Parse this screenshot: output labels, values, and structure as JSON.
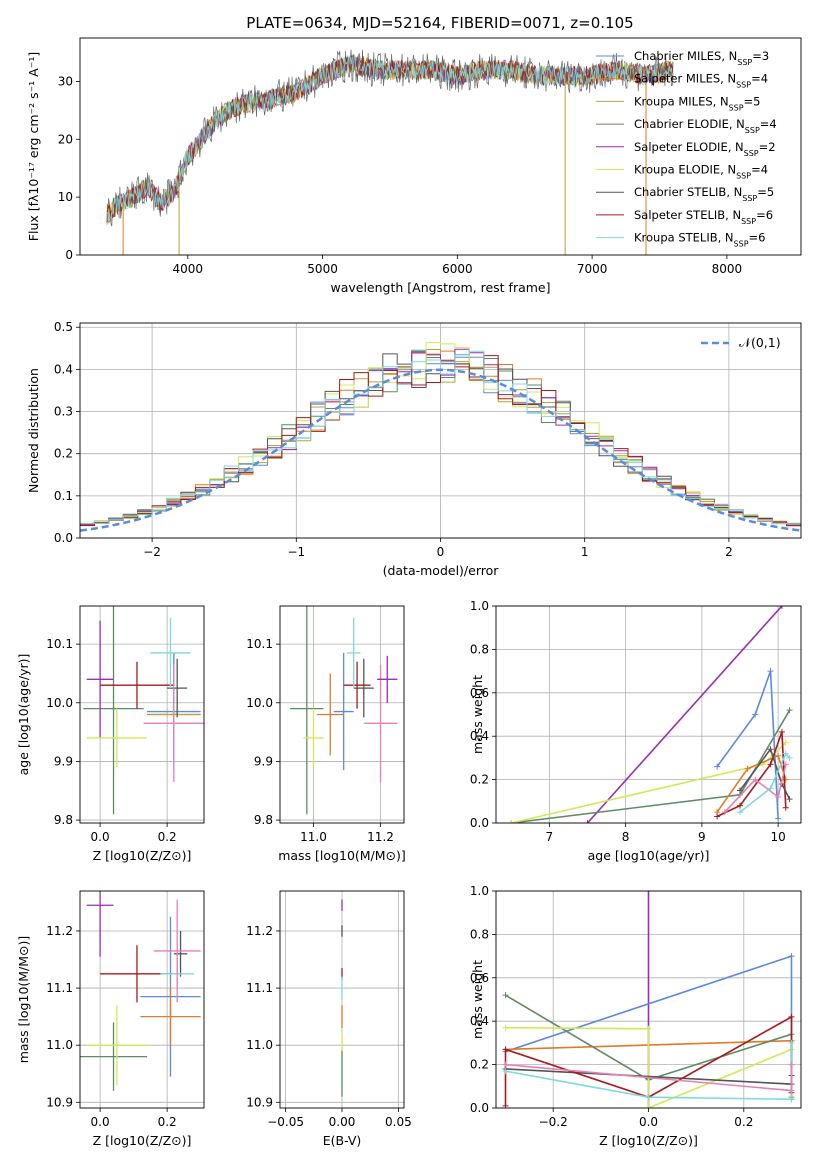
{
  "figure": {
    "title": "PLATE=0634, MJD=52164, FIBERID=0071, z=0.105"
  },
  "series_colors": [
    "#5b8bdc",
    "#e07b27",
    "#b5a43c",
    "#5e8b63",
    "#9a2cb5",
    "#d3e855",
    "#555555",
    "#a81b1b",
    "#7fd8df",
    "#e87fb5",
    "#6e6e6e"
  ],
  "legend": [
    {
      "label": "Chabrier MILES, N",
      "sub": "SSP",
      "eq": "=3",
      "color": "#5b8bdc"
    },
    {
      "label": "Salpeter MILES, N",
      "sub": "SSP",
      "eq": "=4",
      "color": "#e07b27"
    },
    {
      "label": "Kroupa MILES, N",
      "sub": "SSP",
      "eq": "=5",
      "color": "#b5a43c"
    },
    {
      "label": "Chabrier ELODIE, N",
      "sub": "SSP",
      "eq": "=4",
      "color": "#5e8b63"
    },
    {
      "label": "Salpeter ELODIE, N",
      "sub": "SSP",
      "eq": "=2",
      "color": "#9a2cb5"
    },
    {
      "label": "Kroupa ELODIE, N",
      "sub": "SSP",
      "eq": "=4",
      "color": "#d3e855"
    },
    {
      "label": "Chabrier STELIB, N",
      "sub": "SSP",
      "eq": "=5",
      "color": "#555555"
    },
    {
      "label": "Salpeter STELIB, N",
      "sub": "SSP",
      "eq": "=6",
      "color": "#a81b1b"
    },
    {
      "label": "Kroupa STELIB, N",
      "sub": "SSP",
      "eq": "=6",
      "color": "#7fd8df"
    }
  ],
  "chart_data": [
    {
      "id": "spectrum",
      "type": "line",
      "xlabel": "wavelength [Angstrom, rest frame]",
      "ylabel": "Flux [fλ10⁻¹⁷ erg cm⁻² s⁻¹ A⁻¹]",
      "xlim": [
        3200,
        8550
      ],
      "ylim": [
        0,
        37.5
      ],
      "xticks": [
        4000,
        5000,
        6000,
        7000,
        8000
      ],
      "yticks": [
        0,
        10,
        20,
        30
      ],
      "grid": false,
      "legend_position": "right",
      "x": [
        3400,
        3500,
        3600,
        3700,
        3800,
        3900,
        4000,
        4100,
        4200,
        4300,
        4400,
        4600,
        4800,
        5000,
        5200,
        5400,
        5600,
        5800,
        6000,
        6200,
        6400,
        6600,
        6800,
        7000,
        7200,
        7400,
        7600
      ],
      "y": [
        7,
        9,
        10,
        12,
        9,
        11,
        17,
        20,
        23,
        25,
        26,
        27,
        28,
        31,
        33,
        32,
        32,
        32,
        31,
        32,
        32,
        31,
        31,
        31,
        32,
        31,
        32
      ]
    },
    {
      "id": "residuals",
      "type": "step",
      "xlabel": "(data-model)/error",
      "ylabel": "Normed distribution",
      "xlim": [
        -2.5,
        2.5
      ],
      "ylim": [
        0,
        0.51
      ],
      "xticks": [
        -2,
        -1,
        0,
        1,
        2
      ],
      "yticks": [
        0.0,
        0.1,
        0.2,
        0.3,
        0.4,
        0.5
      ],
      "grid": true,
      "legend_position": "top-right",
      "reference_curve": "𝒩(0,1)",
      "bin_width": 0.1
    },
    {
      "id": "age_vs_Z",
      "type": "errorbar",
      "xlabel": "Z [log10(Z/Z⊙)]",
      "ylabel": "age  [log10(age/yr)]",
      "xlim": [
        -0.06,
        0.31
      ],
      "ylim": [
        9.795,
        10.165
      ],
      "xticks": [
        0.0,
        0.2
      ],
      "yticks": [
        9.8,
        9.9,
        10.0,
        10.1
      ],
      "grid": true,
      "points": [
        {
          "x": 0.22,
          "y": 9.985,
          "xerr": 0.08,
          "yerr": 0.1,
          "color": "#5b8bdc"
        },
        {
          "x": 0.22,
          "y": 9.98,
          "xerr": 0.08,
          "yerr": 0.03,
          "color": "#e07b27"
        },
        {
          "x": 0.22,
          "y": 9.98,
          "xerr": 0.07,
          "yerr": 0.02,
          "color": "#b5a43c"
        },
        {
          "x": 0.04,
          "y": 9.99,
          "xerr": 0.09,
          "yerr": 0.18,
          "color": "#5e8b63"
        },
        {
          "x": 0.0,
          "y": 10.04,
          "xerr": 0.04,
          "yerr": 0.1,
          "color": "#9a2cb5"
        },
        {
          "x": 0.05,
          "y": 9.94,
          "xerr": 0.09,
          "yerr": 0.05,
          "color": "#d3e855"
        },
        {
          "x": 0.23,
          "y": 10.025,
          "xerr": 0.03,
          "yerr": 0.05,
          "color": "#555555"
        },
        {
          "x": 0.11,
          "y": 10.03,
          "xerr": 0.11,
          "yerr": 0.04,
          "color": "#a81b1b"
        },
        {
          "x": 0.21,
          "y": 10.085,
          "xerr": 0.06,
          "yerr": 0.06,
          "color": "#7fd8df"
        },
        {
          "x": 0.22,
          "y": 9.965,
          "xerr": 0.09,
          "yerr": 0.1,
          "color": "#e87fb5"
        }
      ]
    },
    {
      "id": "age_vs_mass",
      "type": "errorbar",
      "xlabel": "mass [log10(M/M⊙)]",
      "ylabel": "",
      "xlim": [
        10.9,
        11.27
      ],
      "ylim": [
        9.795,
        10.165
      ],
      "xticks": [
        11.0,
        11.2
      ],
      "yticks": [
        9.8,
        9.9,
        10.0,
        10.1
      ],
      "grid": true,
      "points": [
        {
          "x": 11.09,
          "y": 9.985,
          "xerr": 0.03,
          "yerr": 0.1,
          "color": "#5b8bdc"
        },
        {
          "x": 11.05,
          "y": 9.98,
          "xerr": 0.04,
          "yerr": 0.07,
          "color": "#e07b27"
        },
        {
          "x": 10.98,
          "y": 9.99,
          "xerr": 0.05,
          "yerr": 0.18,
          "color": "#5e8b63"
        },
        {
          "x": 11.0,
          "y": 9.94,
          "xerr": 0.03,
          "yerr": 0.05,
          "color": "#d3e855"
        },
        {
          "x": 11.15,
          "y": 10.025,
          "xerr": 0.03,
          "yerr": 0.05,
          "color": "#555555"
        },
        {
          "x": 11.13,
          "y": 10.03,
          "xerr": 0.04,
          "yerr": 0.04,
          "color": "#a81b1b"
        },
        {
          "x": 11.12,
          "y": 10.085,
          "xerr": 0.02,
          "yerr": 0.06,
          "color": "#7fd8df"
        },
        {
          "x": 11.2,
          "y": 9.965,
          "xerr": 0.05,
          "yerr": 0.1,
          "color": "#e87fb5"
        },
        {
          "x": 11.22,
          "y": 10.04,
          "xerr": 0.03,
          "yerr": 0.04,
          "color": "#9a2cb5"
        }
      ]
    },
    {
      "id": "massweight_vs_age",
      "type": "line",
      "xlabel": "age  [log10(age/yr)]",
      "ylabel": "mass weight",
      "xlim": [
        6.3,
        10.3
      ],
      "ylim": [
        0,
        1.0
      ],
      "xticks": [
        7,
        8,
        9,
        10
      ],
      "yticks": [
        0.0,
        0.2,
        0.4,
        0.6,
        0.8,
        1.0
      ],
      "grid": true,
      "series": [
        {
          "color": "#9a2cb5",
          "x": [
            7.5,
            10.05
          ],
          "y": [
            0,
            1.0
          ]
        },
        {
          "color": "#5e8b63",
          "x": [
            6.5,
            9.5,
            10.15
          ],
          "y": [
            0,
            0.13,
            0.52
          ]
        },
        {
          "color": "#d3e855",
          "x": [
            6.5,
            9.8,
            10.1
          ],
          "y": [
            0,
            0.27,
            0.37
          ]
        },
        {
          "color": "#5b8bdc",
          "x": [
            9.2,
            9.7,
            9.9,
            10.0
          ],
          "y": [
            0.26,
            0.5,
            0.7,
            0.02
          ]
        },
        {
          "color": "#e07b27",
          "x": [
            9.2,
            9.6,
            10.0,
            10.1
          ],
          "y": [
            0.05,
            0.25,
            0.31,
            0.2
          ]
        },
        {
          "color": "#a81b1b",
          "x": [
            9.2,
            9.5,
            9.9,
            10.05,
            10.1
          ],
          "y": [
            0.03,
            0.08,
            0.27,
            0.42,
            0.07
          ]
        },
        {
          "color": "#555555",
          "x": [
            9.5,
            9.9,
            10.05,
            10.15
          ],
          "y": [
            0.15,
            0.34,
            0.18,
            0.11
          ]
        },
        {
          "color": "#e87fb5",
          "x": [
            9.3,
            9.7,
            10.0,
            10.1
          ],
          "y": [
            0.05,
            0.2,
            0.12,
            0.27
          ]
        },
        {
          "color": "#7fd8df",
          "x": [
            9.5,
            9.9,
            10.1,
            10.15
          ],
          "y": [
            0.05,
            0.16,
            0.32,
            0.3
          ]
        }
      ]
    },
    {
      "id": "mass_vs_Z",
      "type": "errorbar",
      "xlabel": "Z [log10(Z/Z⊙)]",
      "ylabel": "mass [log10(M/M⊙)]",
      "xlim": [
        -0.06,
        0.31
      ],
      "ylim": [
        10.89,
        11.27
      ],
      "xticks": [
        0.0,
        0.2
      ],
      "yticks": [
        10.9,
        11.0,
        11.1,
        11.2
      ],
      "grid": true,
      "points": [
        {
          "x": 0.21,
          "y": 11.085,
          "xerr": 0.09,
          "yerr": 0.14,
          "color": "#5b8bdc"
        },
        {
          "x": 0.21,
          "y": 11.05,
          "xerr": 0.09,
          "yerr": 0.05,
          "color": "#e07b27"
        },
        {
          "x": 0.04,
          "y": 10.98,
          "xerr": 0.1,
          "yerr": 0.06,
          "color": "#5e8b63"
        },
        {
          "x": 0.0,
          "y": 11.245,
          "xerr": 0.04,
          "yerr": 0.09,
          "color": "#9a2cb5"
        },
        {
          "x": 0.05,
          "y": 11.0,
          "xerr": 0.09,
          "yerr": 0.07,
          "color": "#d3e855"
        },
        {
          "x": 0.24,
          "y": 11.16,
          "xerr": 0.02,
          "yerr": 0.04,
          "color": "#555555"
        },
        {
          "x": 0.11,
          "y": 11.125,
          "xerr": 0.11,
          "yerr": 0.05,
          "color": "#a81b1b"
        },
        {
          "x": 0.23,
          "y": 11.125,
          "xerr": 0.05,
          "yerr": 0.03,
          "color": "#7fd8df"
        },
        {
          "x": 0.23,
          "y": 11.165,
          "xerr": 0.07,
          "yerr": 0.09,
          "color": "#e87fb5"
        }
      ]
    },
    {
      "id": "mass_vs_EBV",
      "type": "errorbar",
      "xlabel": "E(B-V)",
      "ylabel": "",
      "xlim": [
        -0.055,
        0.055
      ],
      "ylim": [
        10.89,
        11.27
      ],
      "xticks": [
        -0.05,
        0.0,
        0.05
      ],
      "yticks": [
        10.9,
        11.0,
        11.1,
        11.2
      ],
      "grid": true,
      "points": [
        {
          "x": 0.0,
          "y": 11.245,
          "xerr": 0,
          "yerr": 0.01,
          "color": "#9a2cb5"
        },
        {
          "x": 0.0,
          "y": 11.2,
          "xerr": 0,
          "yerr": 0.01,
          "color": "#555555"
        },
        {
          "x": 0.0,
          "y": 11.125,
          "xerr": 0,
          "yerr": 0.01,
          "color": "#a81b1b"
        },
        {
          "x": 0.0,
          "y": 11.1,
          "xerr": 0,
          "yerr": 0.02,
          "color": "#7fd8df"
        },
        {
          "x": 0.0,
          "y": 11.05,
          "xerr": 0,
          "yerr": 0.02,
          "color": "#e07b27"
        },
        {
          "x": 0.0,
          "y": 11.0,
          "xerr": 0,
          "yerr": 0.02,
          "color": "#d3e855"
        },
        {
          "x": 0.0,
          "y": 10.95,
          "xerr": 0,
          "yerr": 0.04,
          "color": "#5e8b63"
        }
      ]
    },
    {
      "id": "massweight_vs_Z",
      "type": "line",
      "xlabel": "Z [log10(Z/Z⊙)]",
      "ylabel": "mass weight",
      "xlim": [
        -0.32,
        0.32
      ],
      "ylim": [
        0,
        1.0
      ],
      "xticks": [
        -0.2,
        0.0,
        0.2
      ],
      "yticks": [
        0.0,
        0.2,
        0.4,
        0.6,
        0.8,
        1.0
      ],
      "grid": true,
      "series": [
        {
          "color": "#9a2cb5",
          "x": [
            0.0,
            0.0
          ],
          "y": [
            0.0,
            1.0
          ]
        },
        {
          "color": "#5b8bdc",
          "x": [
            -0.3,
            0.3,
            0.3
          ],
          "y": [
            0.26,
            0.7,
            0.04
          ]
        },
        {
          "color": "#e07b27",
          "x": [
            -0.3,
            0.3,
            0.3
          ],
          "y": [
            0.27,
            0.31,
            0.05
          ]
        },
        {
          "color": "#5e8b63",
          "x": [
            -0.3,
            0.0,
            0.3,
            0.3
          ],
          "y": [
            0.52,
            0.13,
            0.34,
            0.04
          ]
        },
        {
          "color": "#d3e855",
          "x": [
            -0.3,
            0.0,
            0.0,
            0.3
          ],
          "y": [
            0.37,
            0.365,
            0.0,
            0.27
          ]
        },
        {
          "color": "#555555",
          "x": [
            -0.3,
            0.3,
            0.3
          ],
          "y": [
            0.18,
            0.11,
            0.15
          ]
        },
        {
          "color": "#a81b1b",
          "x": [
            -0.3,
            -0.3,
            0.0,
            0.3,
            0.3
          ],
          "y": [
            0.01,
            0.27,
            0.05,
            0.42,
            0.07
          ]
        },
        {
          "color": "#7fd8df",
          "x": [
            -0.3,
            0.0,
            0.3,
            0.3
          ],
          "y": [
            0.17,
            0.05,
            0.04,
            0.3
          ]
        },
        {
          "color": "#e87fb5",
          "x": [
            -0.3,
            0.3,
            0.3
          ],
          "y": [
            0.2,
            0.08,
            0.2
          ]
        }
      ]
    }
  ]
}
